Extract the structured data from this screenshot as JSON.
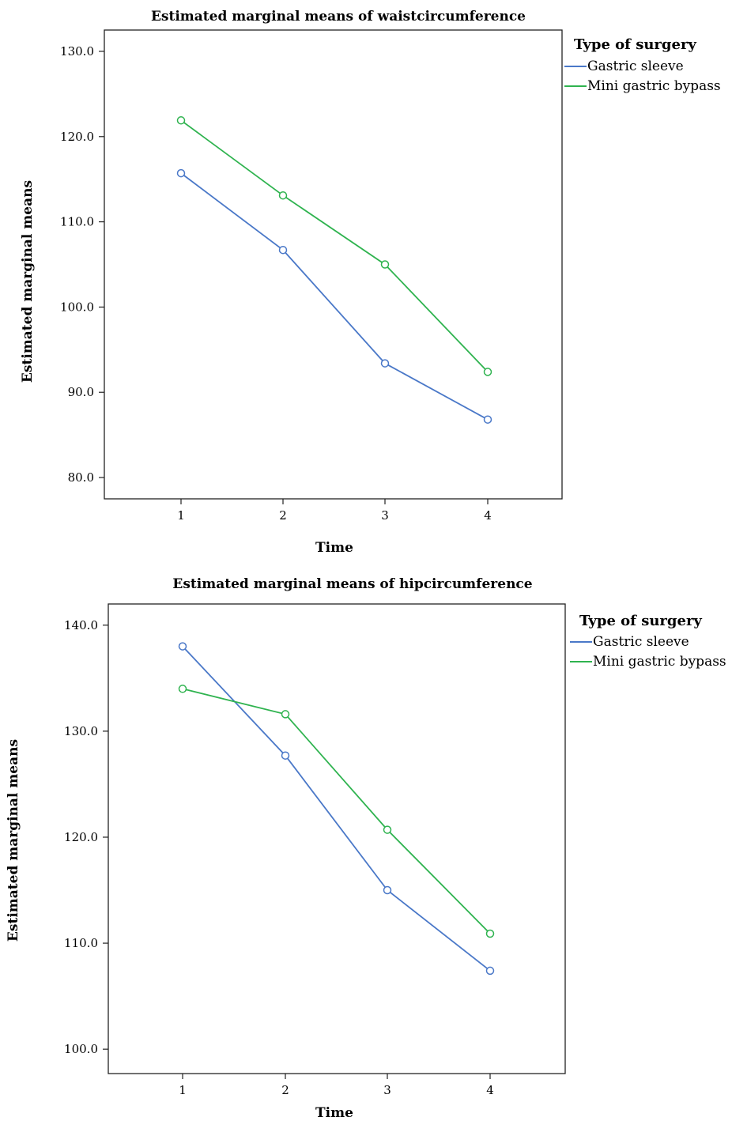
{
  "chart_data": [
    {
      "type": "line",
      "title": "Estimated marginal means of waistcircumference",
      "xlabel": "Time",
      "ylabel": "Estimated marginal means",
      "categories": [
        "1",
        "2",
        "3",
        "4"
      ],
      "ylim": [
        77.5,
        132.5
      ],
      "yticks": [
        "80.0",
        "90.0",
        "100.0",
        "110.0",
        "120.0",
        "130.0"
      ],
      "yticks_values": [
        80,
        90,
        100,
        110,
        120,
        130
      ],
      "legend_title": "Type of surgery",
      "legend_position": "right",
      "grid": false,
      "series": [
        {
          "name": "Gastric sleeve",
          "color": "#4a78c8",
          "values": [
            115.7,
            106.7,
            93.4,
            86.8
          ]
        },
        {
          "name": "Mini gastric bypass",
          "color": "#2fb34f",
          "values": [
            121.9,
            113.1,
            105.0,
            92.4
          ]
        }
      ]
    },
    {
      "type": "line",
      "title": "Estimated marginal means of hipcircumference",
      "xlabel": "Time",
      "ylabel": "Estimated marginal means",
      "categories": [
        "1",
        "2",
        "3",
        "4"
      ],
      "ylim": [
        97.7,
        142.0
      ],
      "yticks": [
        "100.0",
        "110.0",
        "120.0",
        "130.0",
        "140.0"
      ],
      "yticks_values": [
        100,
        110,
        120,
        130,
        140
      ],
      "legend_title": "Type of surgery",
      "legend_position": "right",
      "grid": false,
      "series": [
        {
          "name": "Gastric sleeve",
          "color": "#4a78c8",
          "values": [
            138.0,
            127.7,
            115.0,
            107.4
          ]
        },
        {
          "name": "Mini gastric bypass",
          "color": "#2fb34f",
          "values": [
            134.0,
            131.6,
            120.7,
            110.9
          ]
        }
      ]
    }
  ]
}
